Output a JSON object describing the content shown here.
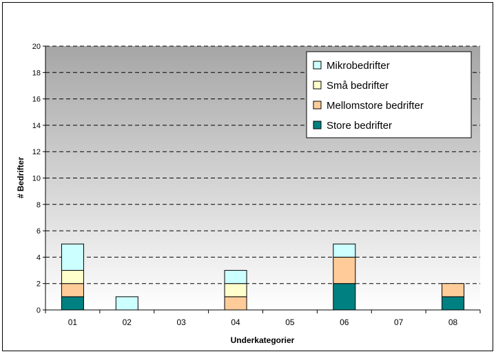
{
  "chart_data": {
    "type": "bar",
    "stacked": true,
    "title": "",
    "xlabel": "Underkategorier",
    "ylabel": "# Bedrifter",
    "ylim": [
      0,
      20
    ],
    "yticks": [
      "0",
      "2",
      "4",
      "6",
      "8",
      "10",
      "12",
      "14",
      "16",
      "18",
      "20"
    ],
    "categories": [
      "01",
      "02",
      "03",
      "04",
      "05",
      "06",
      "07",
      "08"
    ],
    "series": [
      {
        "name": "Store bedrifter",
        "color": "#008080",
        "values": [
          1,
          0,
          0,
          0,
          0,
          2,
          0,
          1
        ]
      },
      {
        "name": "Mellomstore bedrifter",
        "color": "#FFCC99",
        "values": [
          1,
          0,
          0,
          1,
          0,
          2,
          0,
          1
        ]
      },
      {
        "name": "Små bedrifter",
        "color": "#FFFFCC",
        "values": [
          1,
          0,
          0,
          1,
          0,
          0,
          0,
          0
        ]
      },
      {
        "name": "Mikrobedrifter",
        "color": "#CCFFFF",
        "values": [
          2,
          1,
          0,
          1,
          0,
          1,
          0,
          0
        ]
      }
    ],
    "legend_order": [
      "Mikrobedrifter",
      "Små bedrifter",
      "Mellomstore bedrifter",
      "Store bedrifter"
    ],
    "legend_position": "top-right",
    "grid": "dashed horizontal",
    "background": "gray gradient"
  }
}
